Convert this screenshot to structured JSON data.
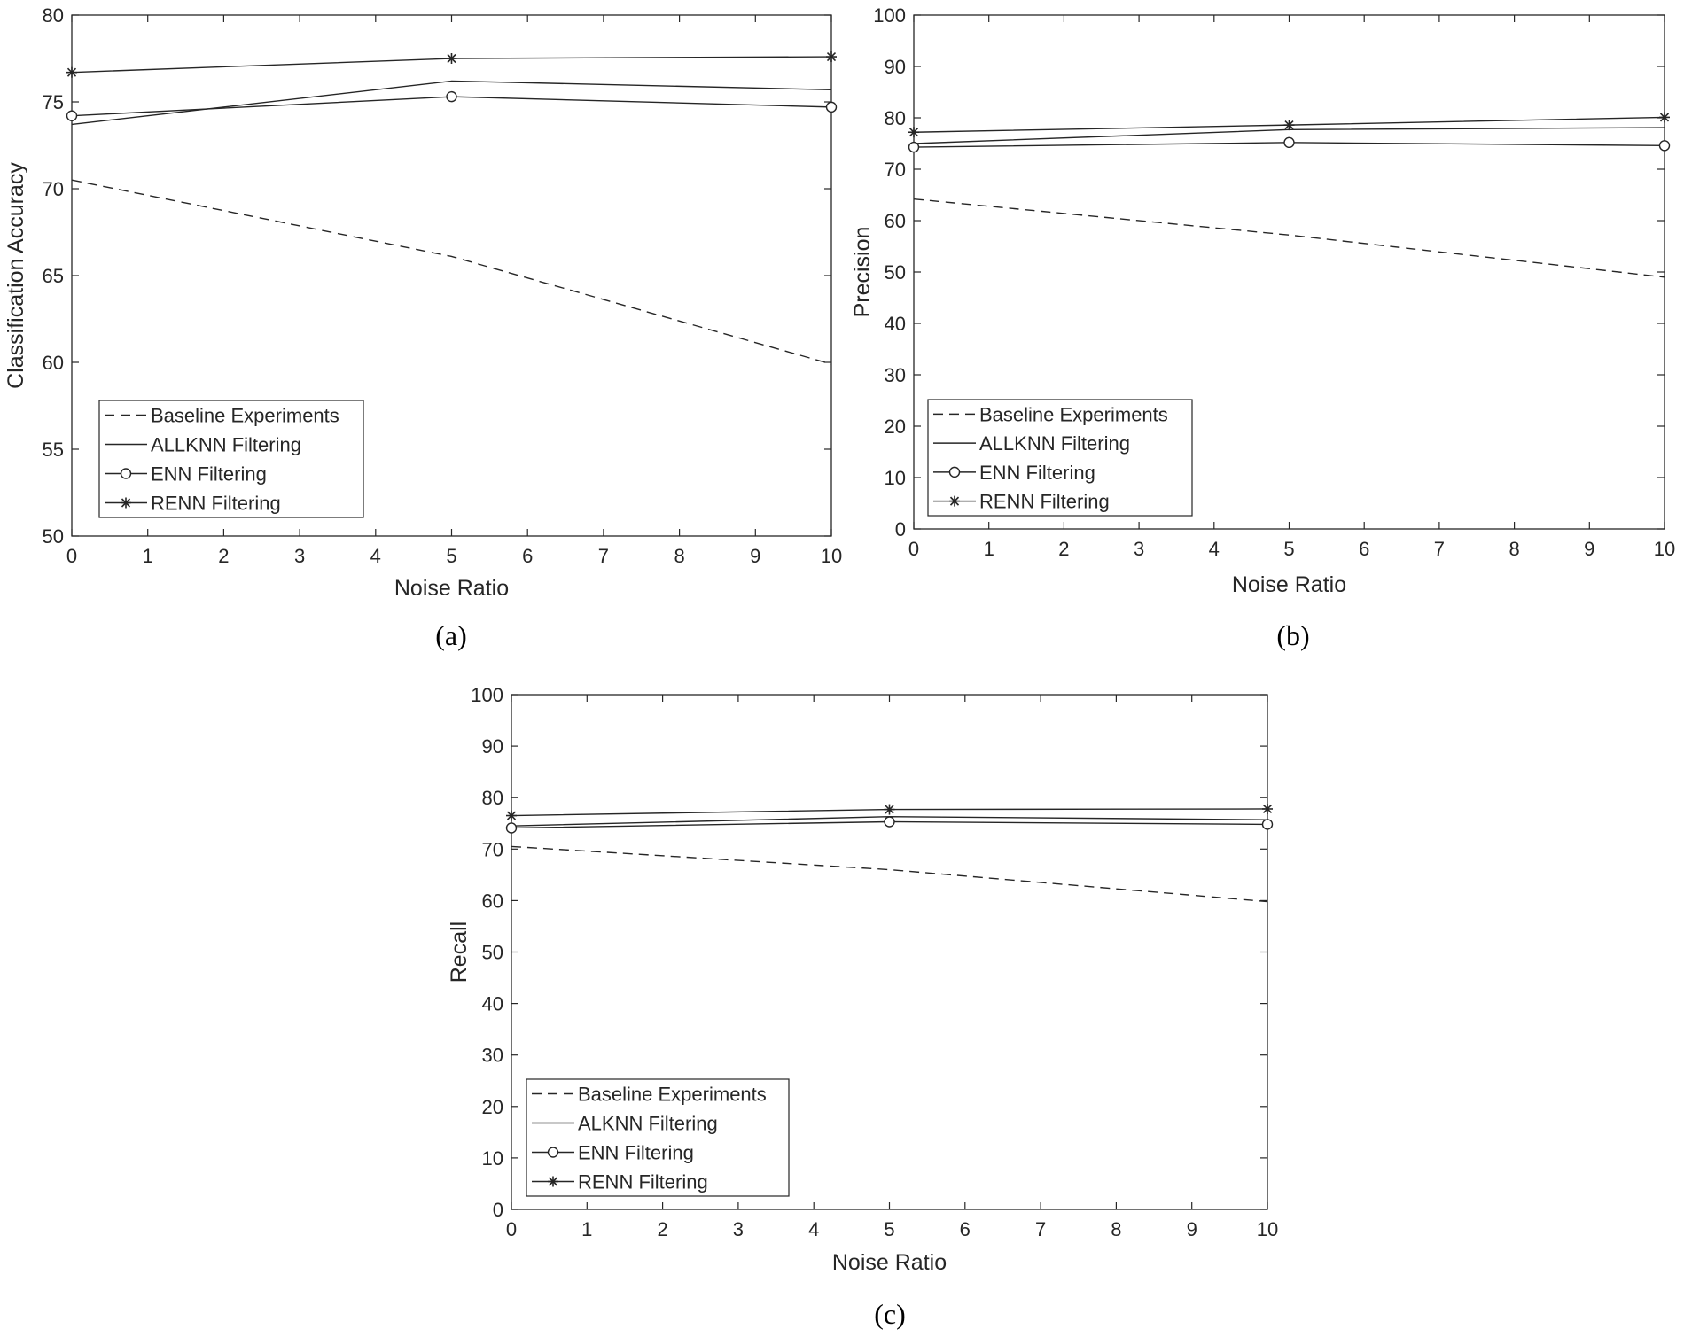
{
  "chart_data": [
    {
      "type": "line",
      "caption": "(a)",
      "xlabel": "Noise Ratio",
      "ylabel": "Classification Accuracy",
      "xlim": [
        0,
        10
      ],
      "ylim": [
        50,
        80
      ],
      "xticks": [
        "0",
        "1",
        "2",
        "3",
        "4",
        "5",
        "6",
        "7",
        "8",
        "9",
        "10"
      ],
      "yticks": [
        "50",
        "55",
        "60",
        "65",
        "70",
        "75",
        "80"
      ],
      "grid": false,
      "legend_position": "bottom-left",
      "x": [
        0,
        5,
        10
      ],
      "series": [
        {
          "name": "Baseline Experiments",
          "style": "dashed",
          "marker": "none",
          "values": [
            70.5,
            66.1,
            59.9
          ]
        },
        {
          "name": "ALLKNN Filtering",
          "style": "solid",
          "marker": "none",
          "values": [
            73.7,
            76.2,
            75.7
          ]
        },
        {
          "name": "ENN Filtering",
          "style": "solid",
          "marker": "circle",
          "values": [
            74.2,
            75.3,
            74.7
          ]
        },
        {
          "name": "RENN Filtering",
          "style": "solid",
          "marker": "star",
          "values": [
            76.7,
            77.5,
            77.6
          ]
        }
      ]
    },
    {
      "type": "line",
      "caption": "(b)",
      "xlabel": "Noise Ratio",
      "ylabel": "Precision",
      "xlim": [
        0,
        10
      ],
      "ylim": [
        0,
        100
      ],
      "xticks": [
        "0",
        "1",
        "2",
        "3",
        "4",
        "5",
        "6",
        "7",
        "8",
        "9",
        "10"
      ],
      "yticks": [
        "0",
        "10",
        "20",
        "30",
        "40",
        "50",
        "60",
        "70",
        "80",
        "90",
        "100"
      ],
      "grid": false,
      "legend_position": "bottom-left",
      "x": [
        0,
        5,
        10
      ],
      "series": [
        {
          "name": "Baseline Experiments",
          "style": "dashed",
          "marker": "none",
          "values": [
            64.2,
            57.2,
            49.0
          ]
        },
        {
          "name": "ALLKNN Filtering",
          "style": "solid",
          "marker": "none",
          "values": [
            75.0,
            77.7,
            78.1
          ]
        },
        {
          "name": "ENN Filtering",
          "style": "solid",
          "marker": "circle",
          "values": [
            74.3,
            75.2,
            74.6
          ]
        },
        {
          "name": "RENN Filtering",
          "style": "solid",
          "marker": "star",
          "values": [
            77.2,
            78.6,
            80.1
          ]
        }
      ]
    },
    {
      "type": "line",
      "caption": "(c)",
      "xlabel": "Noise Ratio",
      "ylabel": "Recall",
      "xlim": [
        0,
        10
      ],
      "ylim": [
        0,
        100
      ],
      "xticks": [
        "0",
        "1",
        "2",
        "3",
        "4",
        "5",
        "6",
        "7",
        "8",
        "9",
        "10"
      ],
      "yticks": [
        "0",
        "10",
        "20",
        "30",
        "40",
        "50",
        "60",
        "70",
        "80",
        "90",
        "100"
      ],
      "grid": false,
      "legend_position": "bottom-left",
      "x": [
        0,
        5,
        10
      ],
      "series": [
        {
          "name": "Baseline Experiments",
          "style": "dashed",
          "marker": "none",
          "values": [
            70.5,
            66.0,
            59.8
          ]
        },
        {
          "name": "ALKNN Filtering",
          "style": "solid",
          "marker": "none",
          "values": [
            74.5,
            76.3,
            75.7
          ]
        },
        {
          "name": "ENN Filtering",
          "style": "solid",
          "marker": "circle",
          "values": [
            74.1,
            75.3,
            74.8
          ]
        },
        {
          "name": "RENN Filtering",
          "style": "solid",
          "marker": "star",
          "values": [
            76.5,
            77.7,
            77.8
          ]
        }
      ]
    }
  ]
}
